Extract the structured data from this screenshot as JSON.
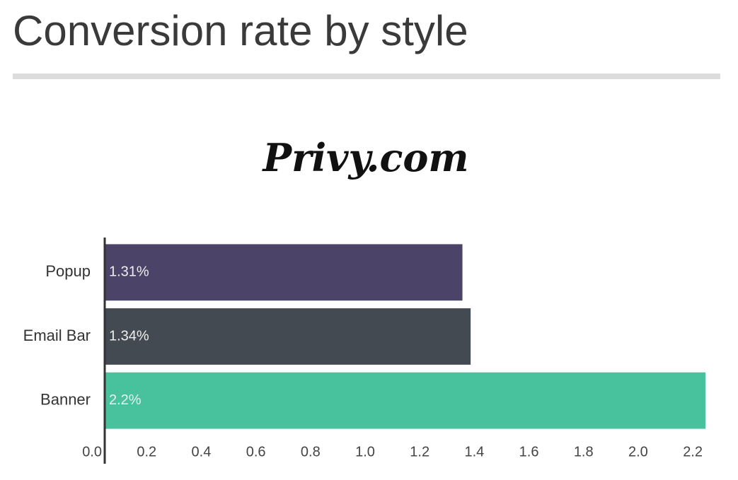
{
  "chart_data": {
    "type": "hbar",
    "title": "Conversion rate by style",
    "logo": "Privy.com",
    "categories": [
      "Popup",
      "Email Bar",
      "Banner"
    ],
    "values": [
      1.31,
      1.34,
      2.2
    ],
    "value_labels": [
      "1.31%",
      "1.34%",
      "2.2%"
    ],
    "colors": [
      "#4b4468",
      "#434a52",
      "#48c19d"
    ],
    "xlim": [
      0,
      2.2
    ],
    "xticks": [
      {
        "value": 0,
        "label": "0.0"
      },
      0.2,
      0.4,
      0.6,
      0.8,
      {
        "value": 1,
        "label": "1.0"
      },
      1.2,
      1.4,
      1.6,
      1.8,
      {
        "value": 2,
        "label": "2.0"
      },
      2.2
    ],
    "grid": false
  }
}
